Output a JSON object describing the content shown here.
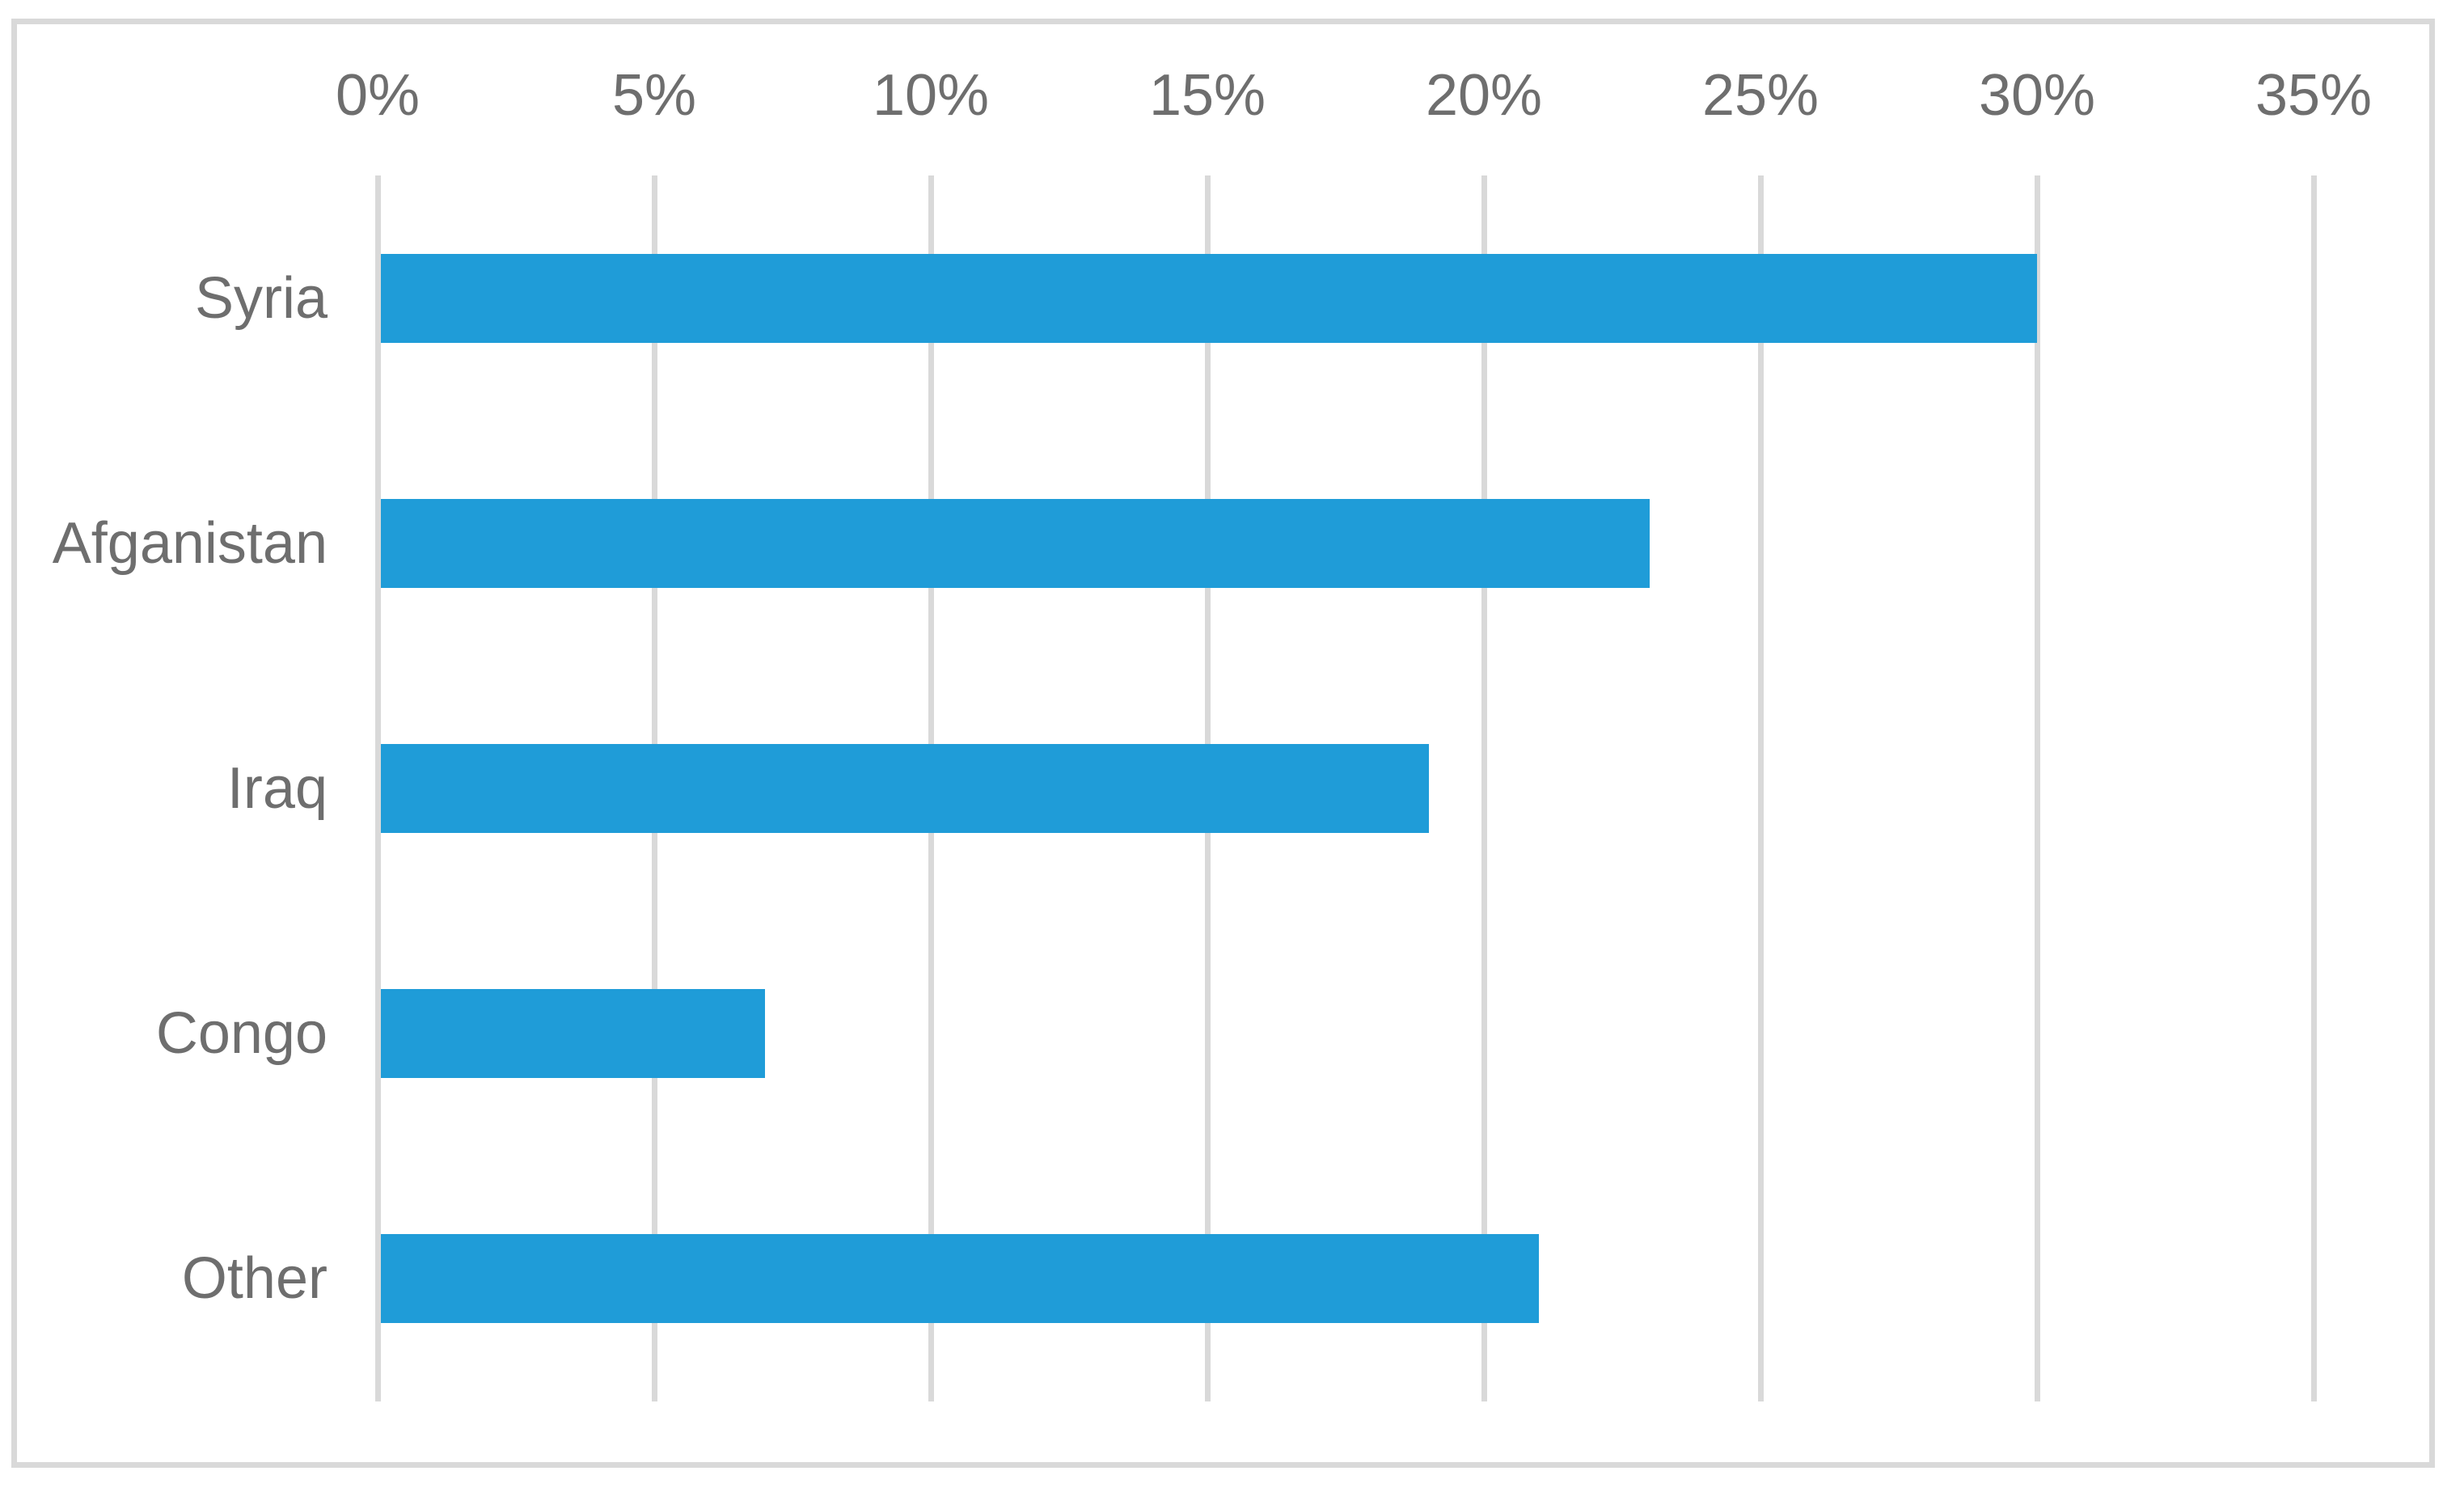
{
  "chart_data": {
    "type": "bar",
    "orientation": "horizontal",
    "title": "",
    "xlabel": "",
    "ylabel": "",
    "categories": [
      "Syria",
      "Afganistan",
      "Iraq",
      "Congo",
      "Other"
    ],
    "values": [
      30,
      23,
      19,
      7,
      21
    ],
    "value_unit": "%",
    "xlim": [
      0,
      35
    ],
    "x_ticks": [
      0,
      5,
      10,
      15,
      20,
      25,
      30,
      35
    ],
    "x_tick_labels": [
      "0%",
      "5%",
      "10%",
      "15%",
      "20%",
      "25%",
      "30%",
      "35%"
    ],
    "axis_position": "top",
    "grid": "vertical-major",
    "legend": "none",
    "colors": {
      "bar": "#1F9CD8",
      "gridline": "#D9D9D9",
      "chart_border": "#D9D9D9",
      "text": "#6E6E6E",
      "background": "#FFFFFF"
    }
  }
}
